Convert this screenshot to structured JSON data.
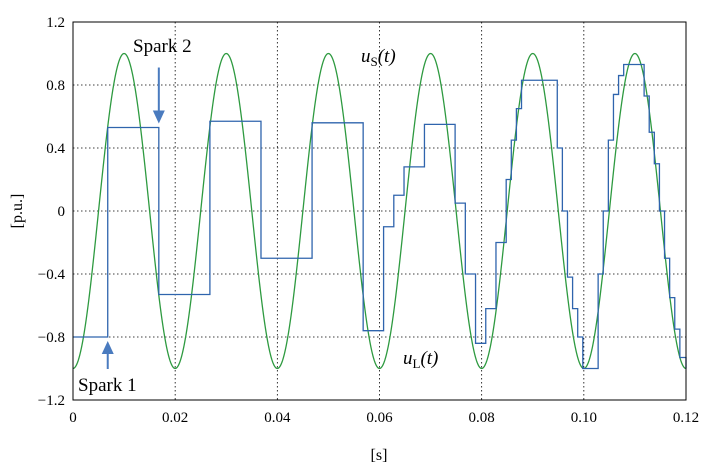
{
  "chart_data": {
    "type": "line",
    "xlabel": "[s]",
    "ylabel": "[p.u.]",
    "xlim": [
      0,
      0.12
    ],
    "ylim": [
      -1.2,
      1.2
    ],
    "x_ticks": [
      0,
      0.02,
      0.04,
      0.06,
      0.08,
      0.1,
      0.12
    ],
    "x_tick_labels": [
      "0",
      "0.02",
      "0.04",
      "0.06",
      "0.08",
      "0.10",
      "0.12"
    ],
    "y_ticks": [
      1.2,
      0.8,
      0.4,
      0,
      -0.4,
      -0.8,
      -1.2
    ],
    "y_tick_labels": [
      "1.2",
      "0.8",
      "0.4",
      "0",
      "−0.4",
      "−0.8",
      "−1.2"
    ],
    "grid": true,
    "series": [
      {
        "name": "uS(t)",
        "label_main": "u",
        "label_sub": "S",
        "label_tail": "(t)",
        "color": "#2e9a40",
        "function": "-cos(2*pi*50*t)",
        "x": [
          0,
          0.005,
          0.01,
          0.015,
          0.02,
          0.025,
          0.03,
          0.035,
          0.04,
          0.045,
          0.05,
          0.055,
          0.06,
          0.065,
          0.07,
          0.075,
          0.08,
          0.085,
          0.09,
          0.095,
          0.1,
          0.105,
          0.11,
          0.115,
          0.12
        ],
        "y": [
          -1,
          0,
          1,
          0,
          -1,
          0,
          1,
          0,
          -1,
          0,
          1,
          0,
          -1,
          0,
          1,
          0,
          -1,
          0,
          1,
          0,
          -1,
          0,
          1,
          0,
          -1
        ]
      },
      {
        "name": "uL(t)",
        "label_main": "u",
        "label_sub": "L",
        "label_tail": "(t)",
        "color": "#2f64ad",
        "step": true,
        "x": [
          0,
          0.0068,
          0.0168,
          0.0268,
          0.0368,
          0.0468,
          0.0568,
          0.0608,
          0.0628,
          0.0648,
          0.0688,
          0.0748,
          0.0768,
          0.0788,
          0.0808,
          0.0828,
          0.0848,
          0.0858,
          0.0868,
          0.0878,
          0.0948,
          0.0958,
          0.0968,
          0.0978,
          0.0988,
          0.0998,
          0.1028,
          0.1038,
          0.1048,
          0.1058,
          0.1068,
          0.1078,
          0.1088,
          0.1118,
          0.1128,
          0.1138,
          0.1148,
          0.1158,
          0.1168,
          0.1178,
          0.1188,
          0.12
        ],
        "y": [
          -0.8,
          0.53,
          -0.53,
          0.57,
          -0.3,
          0.56,
          -0.76,
          -0.1,
          0.1,
          0.28,
          0.55,
          0.05,
          -0.4,
          -0.84,
          -0.62,
          -0.2,
          0.2,
          0.45,
          0.65,
          0.83,
          0.4,
          0.0,
          -0.42,
          -0.62,
          -0.8,
          -1.0,
          -0.4,
          0.0,
          0.45,
          0.74,
          0.86,
          0.93,
          0.93,
          0.73,
          0.5,
          0.3,
          0.0,
          -0.3,
          -0.55,
          -0.75,
          -0.93,
          -1.0
        ]
      }
    ],
    "annotations": [
      {
        "text": "Spark 1",
        "arrow_at": [
          0.0068,
          -0.8
        ],
        "direction": "up"
      },
      {
        "text": "Spark 2",
        "arrow_at": [
          0.0168,
          0.53
        ],
        "direction": "down"
      }
    ]
  }
}
